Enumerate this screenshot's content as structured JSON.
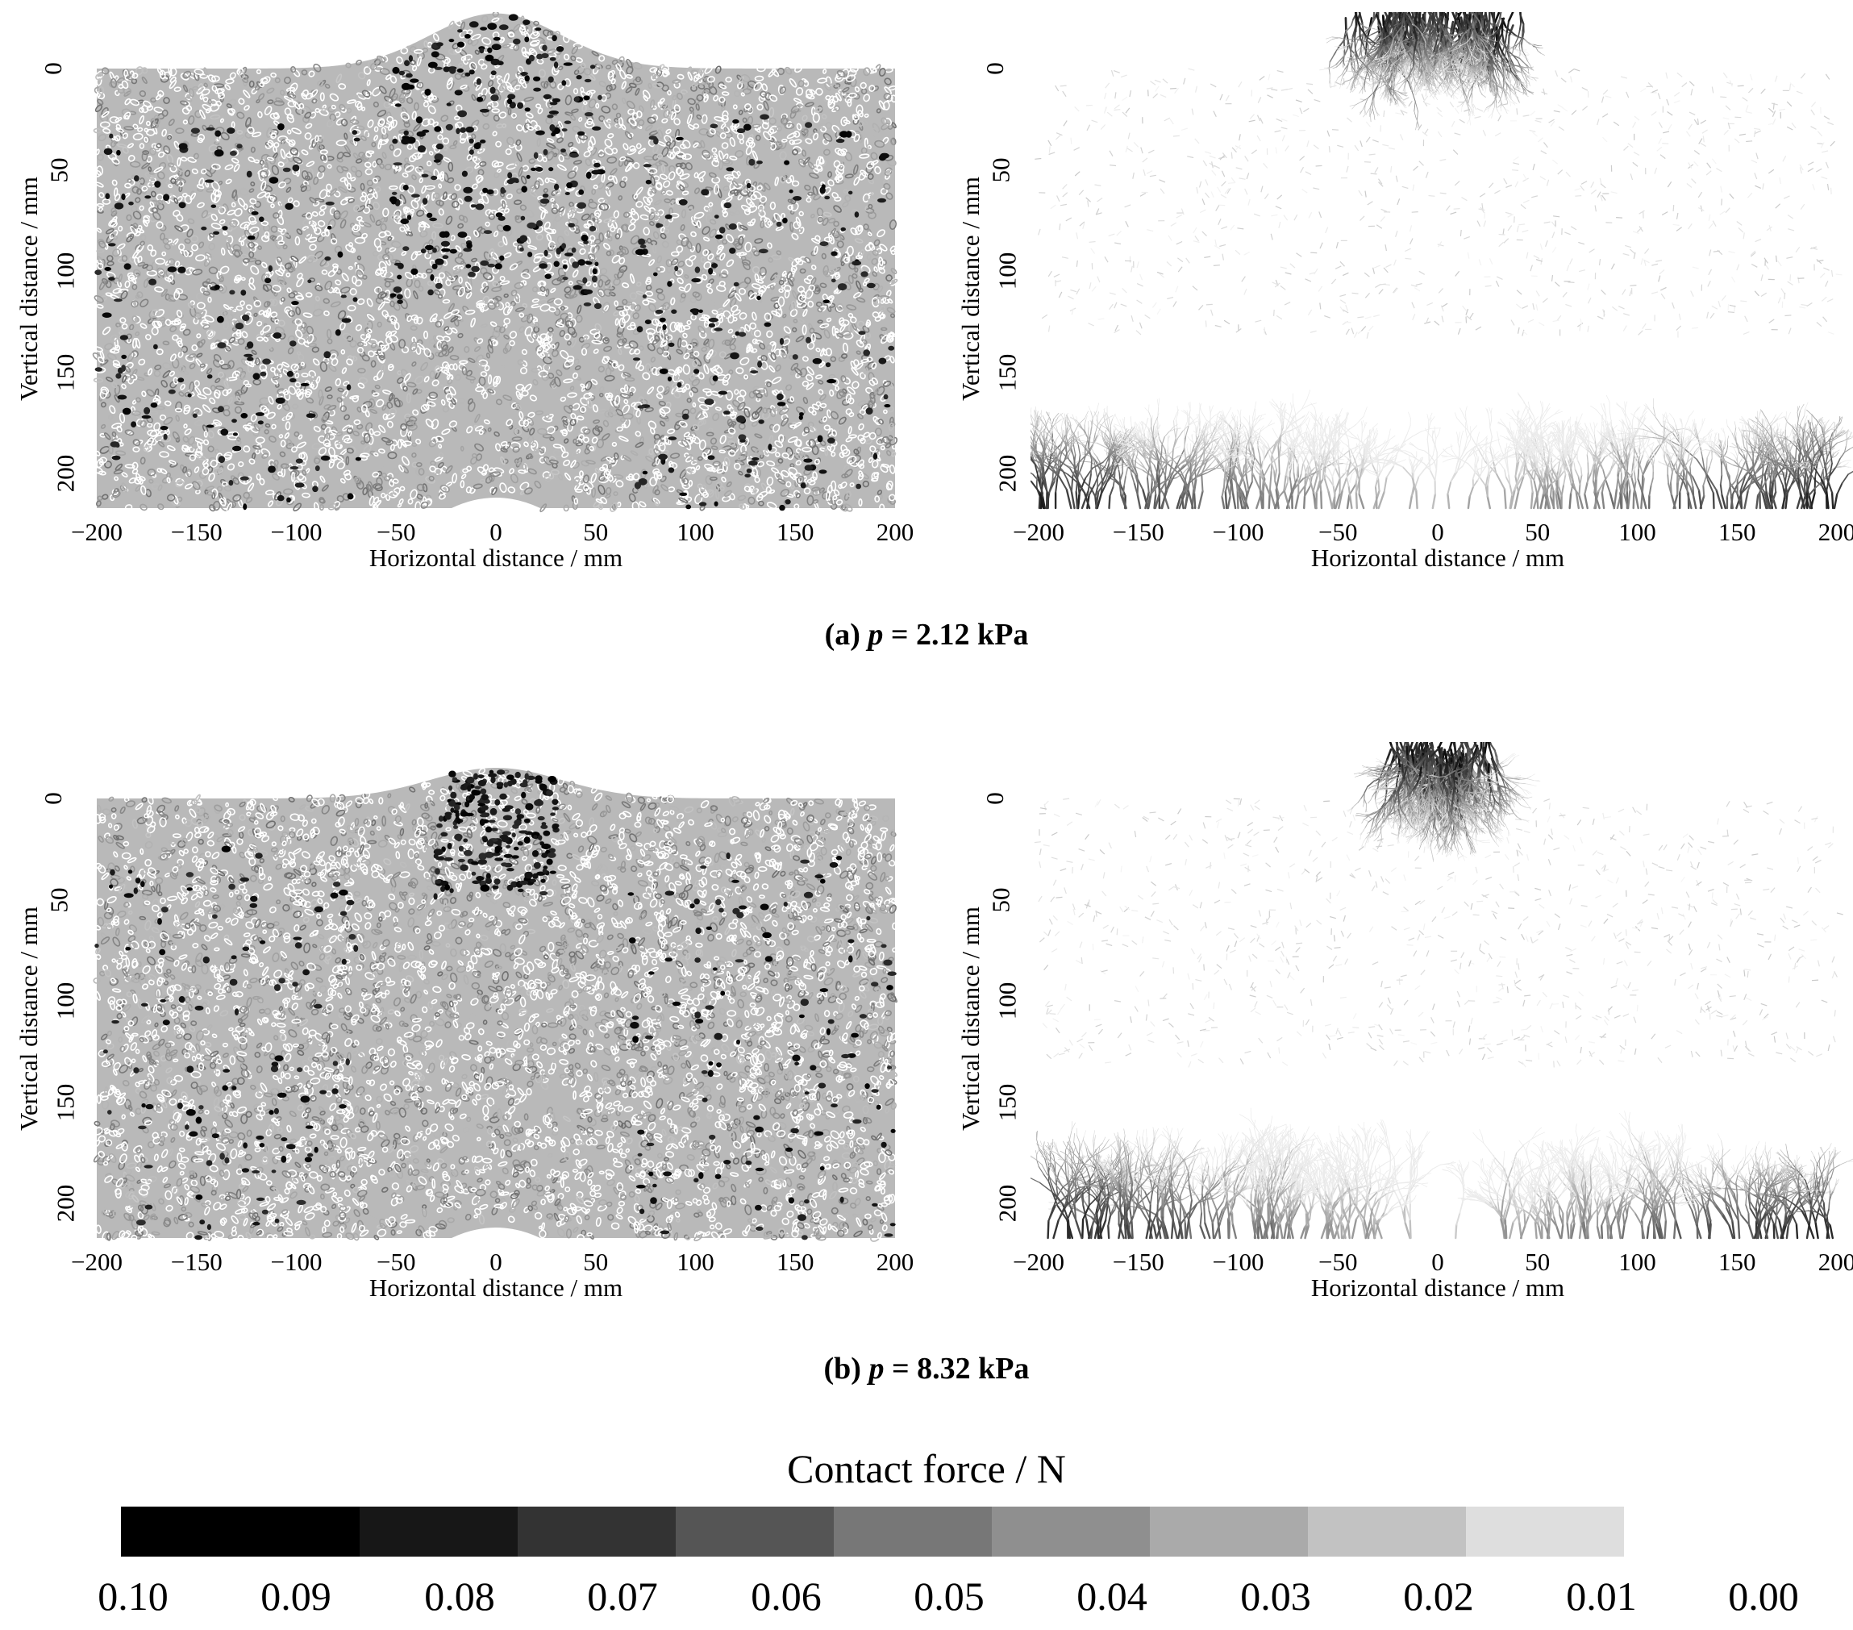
{
  "panels": [
    {
      "id": "a-particles",
      "left": 110,
      "top": 85,
      "style": "particles",
      "peak": 0.72,
      "seed": 11
    },
    {
      "id": "a-chains",
      "left": 1278,
      "top": 85,
      "style": "chains",
      "peak": 0.72,
      "seed": 23
    },
    {
      "id": "b-particles",
      "left": 110,
      "top": 990,
      "style": "particles",
      "peak": 0.4,
      "seed": 37
    },
    {
      "id": "b-chains",
      "left": 1278,
      "top": 990,
      "style": "chains",
      "peak": 0.4,
      "seed": 53
    }
  ],
  "axes": {
    "x_title": "Horizontal distance / mm",
    "y_title": "Vertical distance / mm",
    "x_ticks": [
      "−200",
      "−150",
      "−100",
      "−50",
      "0",
      "50",
      "100",
      "150",
      "200"
    ],
    "y_ticks": [
      "0",
      "50",
      "100",
      "150",
      "200"
    ]
  },
  "captions": {
    "a": {
      "prefix": "(a) ",
      "var": "p",
      "rest": " = 2.12 kPa"
    },
    "b": {
      "prefix": "(b) ",
      "var": "p",
      "rest": " = 8.32 kPa"
    }
  },
  "legend": {
    "title": "Contact force / N",
    "ticks": [
      "0.10",
      "0.09",
      "0.08",
      "0.07",
      "0.06",
      "0.05",
      "0.04",
      "0.03",
      "0.02",
      "0.01",
      "0.00"
    ],
    "colors": [
      "#000000",
      "#171717",
      "#333333",
      "#555555",
      "#777777",
      "#8f8f8f",
      "#aaaaaa",
      "#c2c2c2",
      "#dedede"
    ]
  }
}
